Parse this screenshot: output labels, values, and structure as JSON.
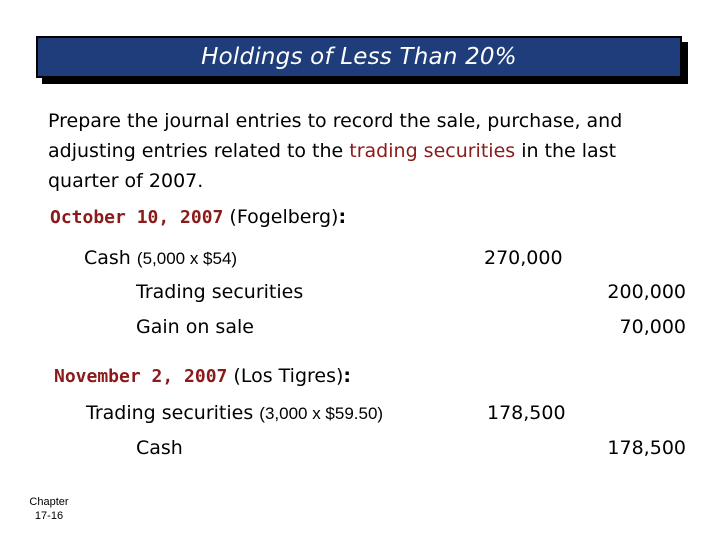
{
  "title": "Holdings of Less Than 20%",
  "intro": {
    "part1": "Prepare the journal entries to record the sale, purchase, and adjusting entries related to the ",
    "highlight": "trading securities",
    "part2": " in the last quarter of 2007."
  },
  "entries": [
    {
      "date": "October 10, 2007",
      "party": " (Fogelberg)",
      "colon": ":",
      "lines": [
        {
          "account": "Cash",
          "calc": "(5,000 x $54)",
          "debit": "270,000",
          "credit": ""
        },
        {
          "account": "Trading securities",
          "calc": "",
          "debit": "",
          "credit": "200,000"
        },
        {
          "account": "Gain on sale",
          "calc": "",
          "debit": "",
          "credit": "70,000"
        }
      ]
    },
    {
      "date": "November 2, 2007",
      "party": " (Los Tigres)",
      "colon": ":",
      "lines": [
        {
          "account": "Trading securities",
          "calc": "(3,000 x $59.50)",
          "debit": "178,500",
          "credit": ""
        },
        {
          "account": "Cash",
          "calc": "",
          "debit": "",
          "credit": "178,500"
        }
      ]
    }
  ],
  "footer": {
    "chapter_label": "Chapter",
    "page": "17-16"
  },
  "colors": {
    "title_bar": "#1f3d7a",
    "highlight": "#8b1a1a"
  }
}
